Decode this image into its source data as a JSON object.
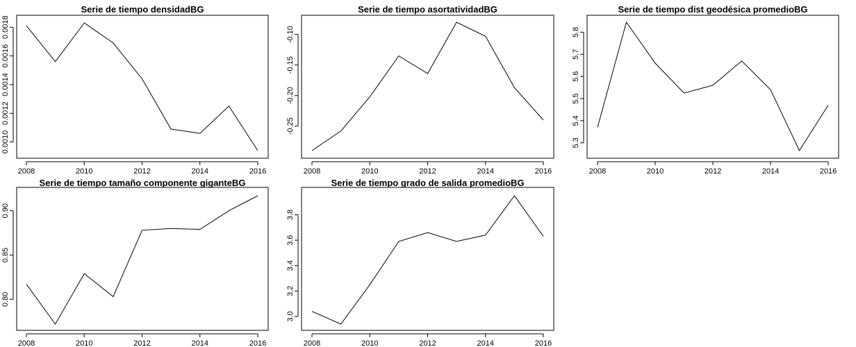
{
  "chart_data": [
    {
      "type": "line",
      "title": "Serie de tiempo densidadBG",
      "xlabel": "",
      "ylabel": "",
      "x": [
        2008,
        2009,
        2010,
        2011,
        2012,
        2013,
        2014,
        2015,
        2016
      ],
      "series": [
        {
          "values": [
            0.00181,
            0.00156,
            0.00183,
            0.00169,
            0.00144,
            0.00109,
            0.00106,
            0.00125,
            0.00094
          ]
        }
      ],
      "xticks": [
        2008,
        2010,
        2012,
        2014,
        2016
      ],
      "xtick_labels": [
        "2008",
        "2010",
        "2012",
        "2014",
        "2016"
      ],
      "xlim": [
        2008,
        2016
      ],
      "yticks": [
        0.001,
        0.0012,
        0.0014,
        0.0016,
        0.0018
      ],
      "ytick_labels": [
        "0.0010",
        "0.0012",
        "0.0014",
        "0.0016",
        "0.0018"
      ],
      "ylim": [
        0.00094,
        0.00183
      ],
      "grid": false,
      "legend": "none"
    },
    {
      "type": "line",
      "title": "Serie de tiempo asortatividadBG",
      "xlabel": "",
      "ylabel": "",
      "x": [
        2008,
        2009,
        2010,
        2011,
        2012,
        2013,
        2014,
        2015,
        2016
      ],
      "series": [
        {
          "values": [
            -0.29,
            -0.258,
            -0.202,
            -0.135,
            -0.164,
            -0.08,
            -0.103,
            -0.187,
            -0.24
          ]
        }
      ],
      "xticks": [
        2008,
        2010,
        2012,
        2014,
        2016
      ],
      "xtick_labels": [
        "2008",
        "2010",
        "2012",
        "2014",
        "2016"
      ],
      "xlim": [
        2008,
        2016
      ],
      "yticks": [
        -0.25,
        -0.2,
        -0.15,
        -0.1
      ],
      "ytick_labels": [
        "-0.25",
        "-0.20",
        "-0.15",
        "-0.10"
      ],
      "ylim": [
        -0.29,
        -0.08
      ],
      "grid": false,
      "legend": "none"
    },
    {
      "type": "line",
      "title": "Serie de tiempo dist geodésica promedioBG",
      "xlabel": "",
      "ylabel": "",
      "x": [
        2008,
        2009,
        2010,
        2011,
        2012,
        2013,
        2014,
        2015,
        2016
      ],
      "series": [
        {
          "values": [
            5.37,
            5.845,
            5.66,
            5.525,
            5.56,
            5.67,
            5.54,
            5.265,
            5.47
          ]
        }
      ],
      "xticks": [
        2008,
        2010,
        2012,
        2014,
        2016
      ],
      "xtick_labels": [
        "2008",
        "2010",
        "2012",
        "2014",
        "2016"
      ],
      "xlim": [
        2008,
        2016
      ],
      "yticks": [
        5.3,
        5.4,
        5.5,
        5.6,
        5.7,
        5.8
      ],
      "ytick_labels": [
        "5.3",
        "5.4",
        "5.5",
        "5.6",
        "5.7",
        "5.8"
      ],
      "ylim": [
        5.265,
        5.845
      ],
      "grid": false,
      "legend": "none"
    },
    {
      "type": "line",
      "title": "Serie de tiempo tamaño componente giganteBG",
      "xlabel": "",
      "ylabel": "",
      "x": [
        2008,
        2009,
        2010,
        2011,
        2012,
        2013,
        2014,
        2015,
        2016
      ],
      "series": [
        {
          "values": [
            0.817,
            0.772,
            0.829,
            0.803,
            0.878,
            0.88,
            0.879,
            0.9,
            0.917
          ]
        }
      ],
      "xticks": [
        2008,
        2010,
        2012,
        2014,
        2016
      ],
      "xtick_labels": [
        "2008",
        "2010",
        "2012",
        "2014",
        "2016"
      ],
      "xlim": [
        2008,
        2016
      ],
      "yticks": [
        0.8,
        0.85,
        0.9
      ],
      "ytick_labels": [
        "0.80",
        "0.85",
        "0.90"
      ],
      "ylim": [
        0.772,
        0.917
      ],
      "grid": false,
      "legend": "none"
    },
    {
      "type": "line",
      "title": "Serie de tiempo grado de salida promedioBG",
      "xlabel": "",
      "ylabel": "",
      "x": [
        2008,
        2009,
        2010,
        2011,
        2012,
        2013,
        2014,
        2015,
        2016
      ],
      "series": [
        {
          "values": [
            3.04,
            2.94,
            3.25,
            3.59,
            3.66,
            3.59,
            3.64,
            3.95,
            3.63
          ]
        }
      ],
      "xticks": [
        2008,
        2010,
        2012,
        2014,
        2016
      ],
      "xtick_labels": [
        "2008",
        "2010",
        "2012",
        "2014",
        "2016"
      ],
      "xlim": [
        2008,
        2016
      ],
      "yticks": [
        3.0,
        3.2,
        3.4,
        3.6,
        3.8
      ],
      "ytick_labels": [
        "3.0",
        "3.2",
        "3.4",
        "3.6",
        "3.8"
      ],
      "ylim": [
        2.94,
        3.95
      ],
      "grid": false,
      "legend": "none"
    }
  ]
}
